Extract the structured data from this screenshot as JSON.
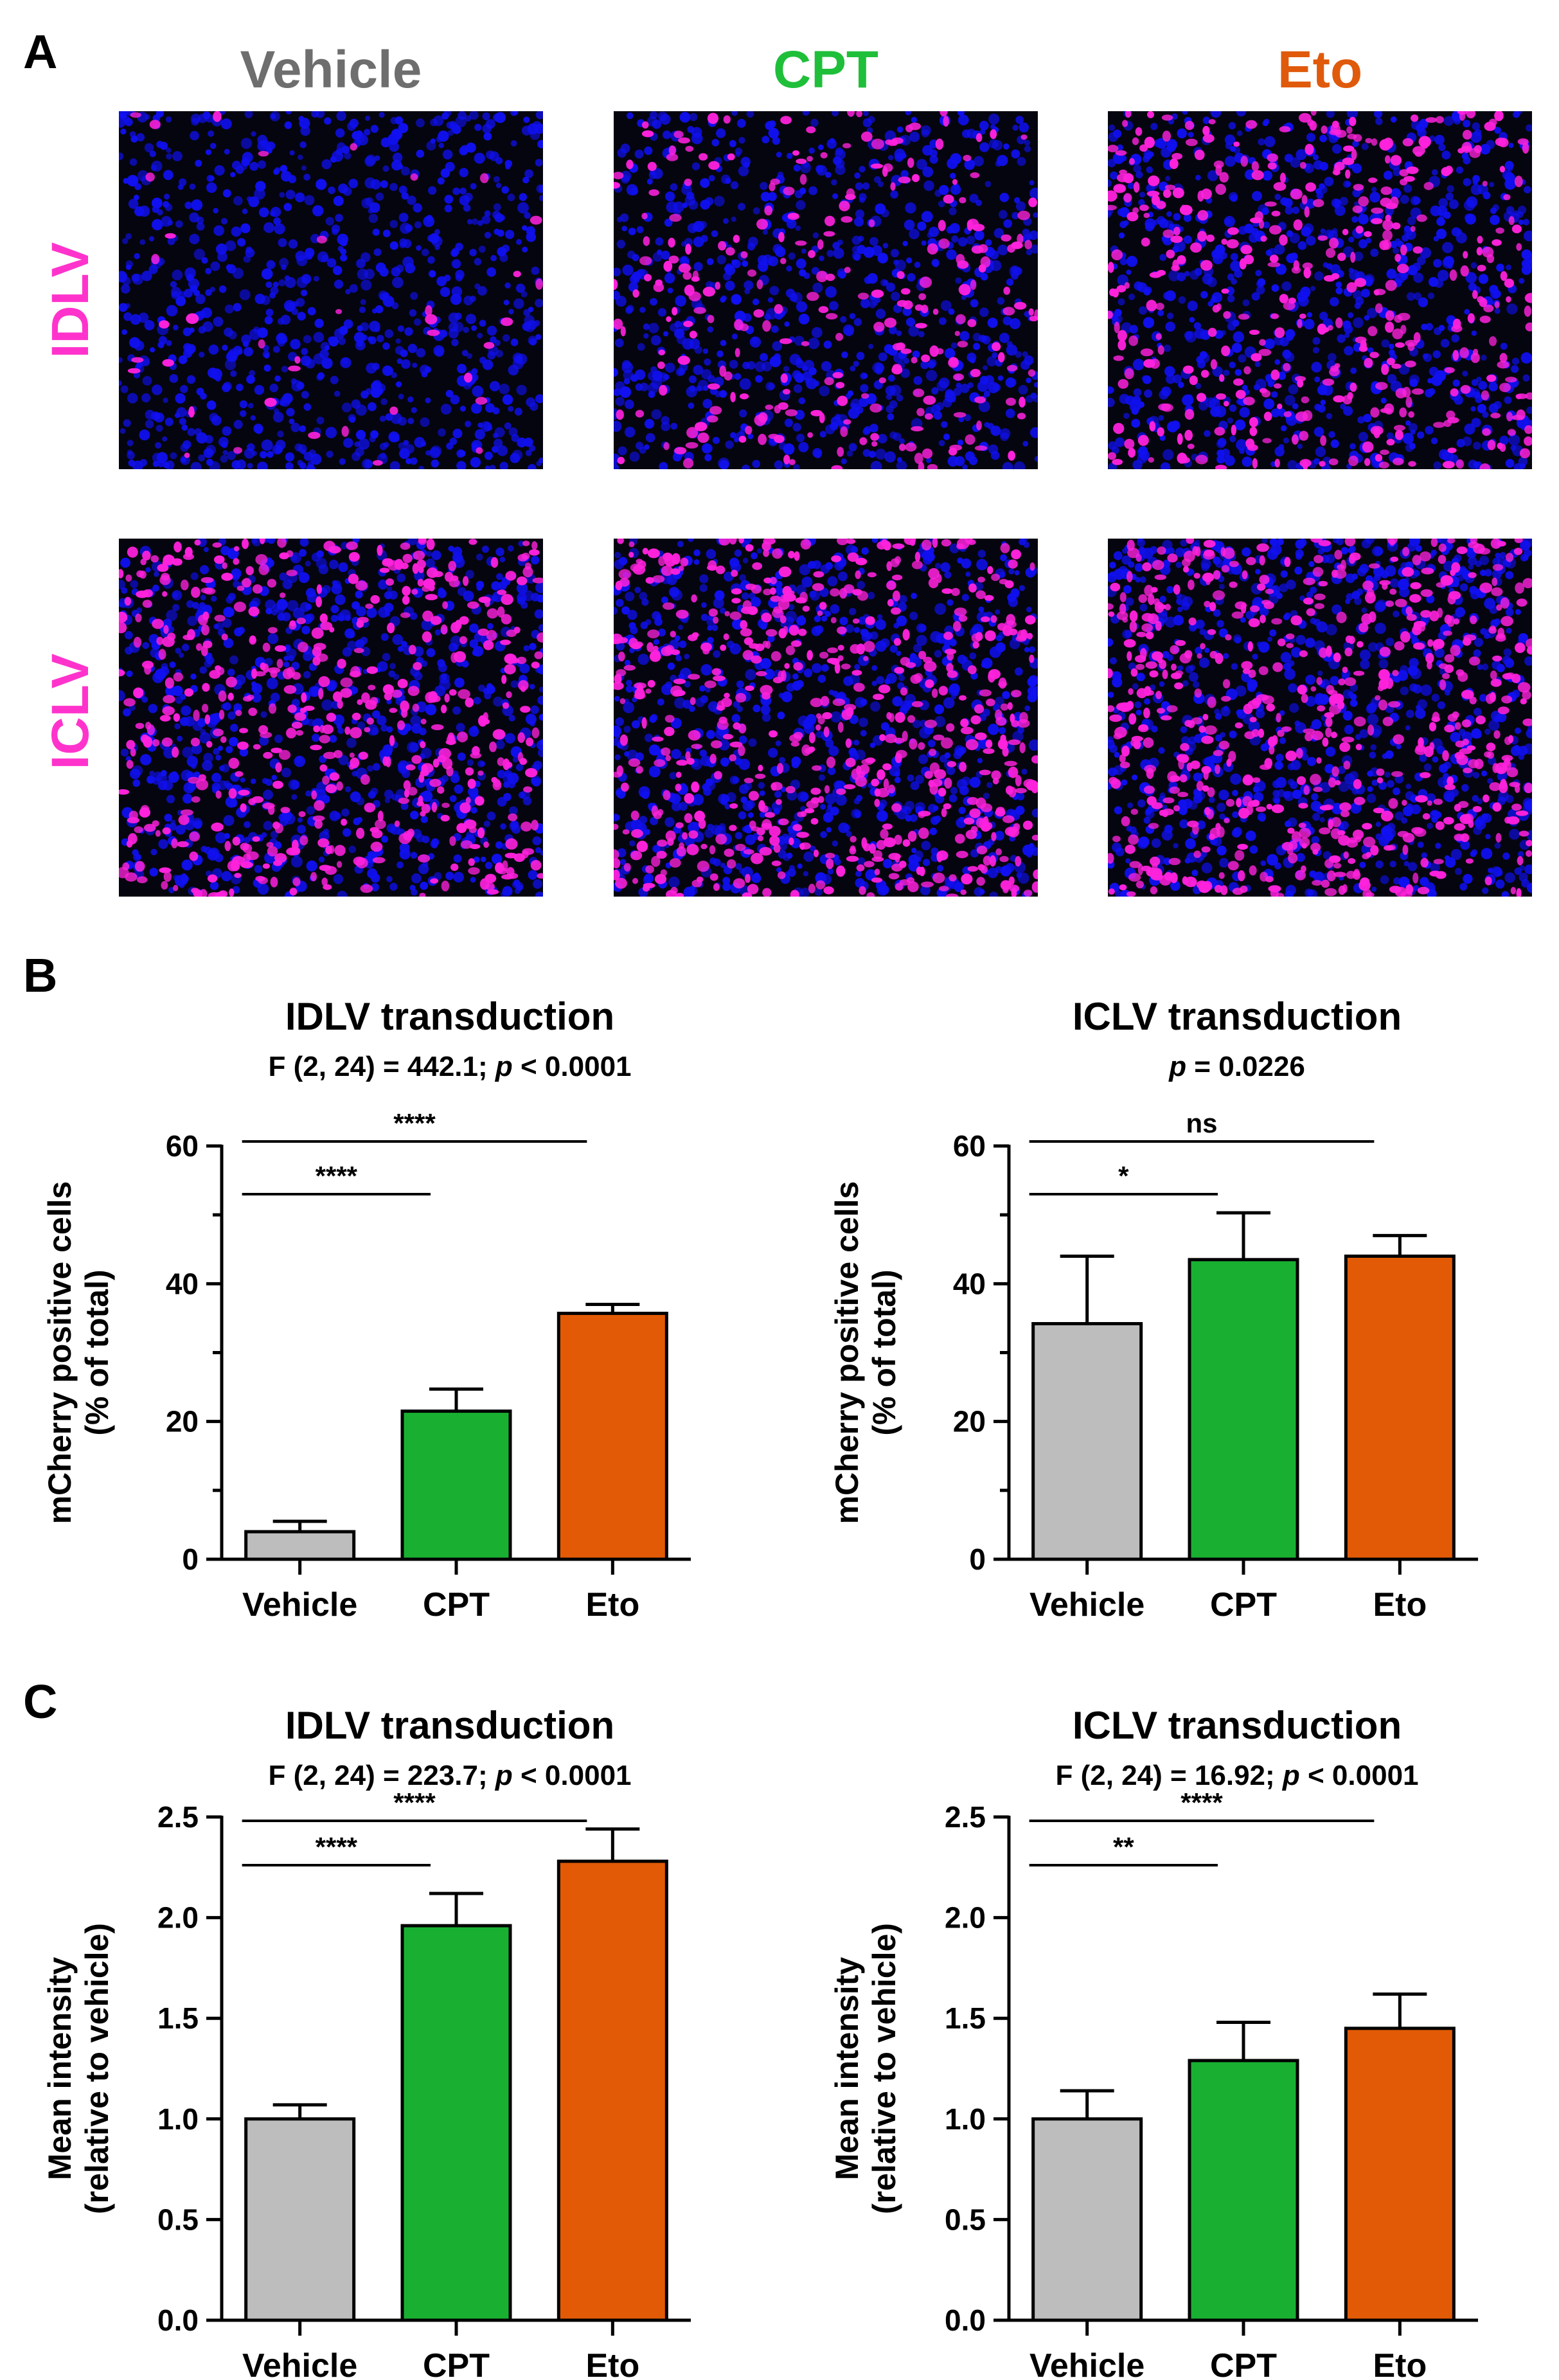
{
  "figure": {
    "panel_a": {
      "letter": "A"
    },
    "panel_b": {
      "letter": "B"
    },
    "panel_c": {
      "letter": "C"
    },
    "columns": [
      {
        "label": "Vehicle",
        "color": "#6e6e6e"
      },
      {
        "label": "CPT",
        "color": "#1fbf3a"
      },
      {
        "label": "Eto",
        "color": "#e05a0c"
      }
    ],
    "rows": [
      {
        "label": "IDLV",
        "color": "#ff33cc"
      },
      {
        "label": "ICLV",
        "color": "#ff33cc"
      }
    ],
    "micrograph_colors": {
      "background": "#050510",
      "nuclei": "#1010f0",
      "mcherry": "#ff22dd"
    }
  },
  "bar_colors": [
    "#bdbdbd",
    "#19b032",
    "#e25a05"
  ],
  "chart_data": [
    {
      "type": "bar",
      "title": "IDLV transduction",
      "subtitle_pre": "F (2, 24) = 442.1; ",
      "subtitle_p": "p",
      "subtitle_post": " < 0.0001",
      "ylabel": [
        "mCherry positive cells",
        "(%  of total)"
      ],
      "categories": [
        "Vehicle",
        "CPT",
        "Eto"
      ],
      "values": [
        4.0,
        21.5,
        35.7
      ],
      "errors": [
        1.5,
        3.2,
        1.3
      ],
      "ylim": [
        0,
        60
      ],
      "yticks": [
        0,
        20,
        40,
        60
      ],
      "ytick_labels": [
        "0",
        "20",
        "40",
        "60"
      ],
      "minor_ticks": [
        10,
        30,
        50
      ],
      "significance": [
        {
          "from": 0,
          "to": 1,
          "label": "****"
        },
        {
          "from": 0,
          "to": 2,
          "label": "****"
        }
      ]
    },
    {
      "type": "bar",
      "title": "ICLV transduction",
      "subtitle_pre": "",
      "subtitle_p": "p",
      "subtitle_post": " = 0.0226",
      "ylabel": [
        "mCherry positive cells",
        "(%  of total)"
      ],
      "categories": [
        "Vehicle",
        "CPT",
        "Eto"
      ],
      "values": [
        34.2,
        43.5,
        44.0
      ],
      "errors": [
        9.8,
        6.8,
        3.0
      ],
      "ylim": [
        0,
        60
      ],
      "yticks": [
        0,
        20,
        40,
        60
      ],
      "ytick_labels": [
        "0",
        "20",
        "40",
        "60"
      ],
      "minor_ticks": [
        10,
        30,
        50
      ],
      "significance": [
        {
          "from": 0,
          "to": 1,
          "label": "*"
        },
        {
          "from": 0,
          "to": 2,
          "label": "ns"
        }
      ]
    },
    {
      "type": "bar",
      "title": "IDLV transduction",
      "subtitle_pre": "F (2, 24) = 223.7; ",
      "subtitle_p": "p",
      "subtitle_post": " < 0.0001",
      "ylabel": [
        "Mean intensity",
        "(relative to vehicle)"
      ],
      "categories": [
        "Vehicle",
        "CPT",
        "Eto"
      ],
      "values": [
        1.0,
        1.96,
        2.28
      ],
      "errors": [
        0.07,
        0.16,
        0.16
      ],
      "ylim": [
        0,
        2.5
      ],
      "yticks": [
        0,
        0.5,
        1.0,
        1.5,
        2.0,
        2.5
      ],
      "ytick_labels": [
        "0.0",
        "0.5",
        "1.0",
        "1.5",
        "2.0",
        "2.5"
      ],
      "minor_ticks": [],
      "significance": [
        {
          "from": 0,
          "to": 1,
          "label": "****"
        },
        {
          "from": 0,
          "to": 2,
          "label": "****"
        }
      ]
    },
    {
      "type": "bar",
      "title": "ICLV transduction",
      "subtitle_pre": "F (2, 24) = 16.92; ",
      "subtitle_p": "p",
      "subtitle_post": " < 0.0001",
      "ylabel": [
        "Mean intensity",
        "(relative to vehicle)"
      ],
      "categories": [
        "Vehicle",
        "CPT",
        "Eto"
      ],
      "values": [
        1.0,
        1.29,
        1.45
      ],
      "errors": [
        0.14,
        0.19,
        0.17
      ],
      "ylim": [
        0,
        2.5
      ],
      "yticks": [
        0,
        0.5,
        1.0,
        1.5,
        2.0,
        2.5
      ],
      "ytick_labels": [
        "0.0",
        "0.5",
        "1.0",
        "1.5",
        "2.0",
        "2.5"
      ],
      "minor_ticks": [],
      "significance": [
        {
          "from": 0,
          "to": 1,
          "label": "**"
        },
        {
          "from": 0,
          "to": 2,
          "label": "****"
        }
      ]
    }
  ]
}
